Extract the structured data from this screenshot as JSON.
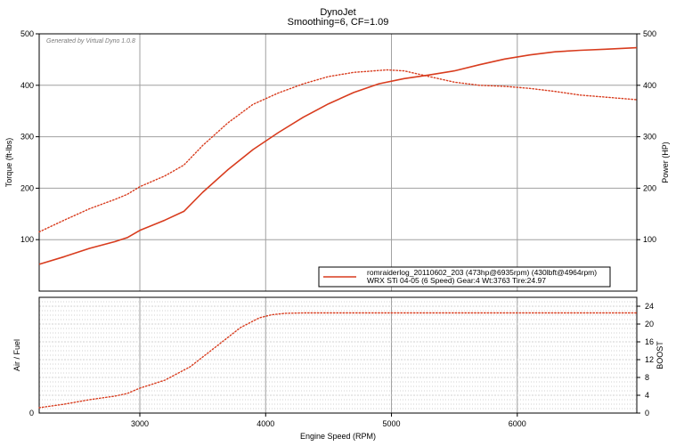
{
  "window": {
    "title": "DynoJet",
    "subtitle": "Smoothing=6, CF=1.09",
    "generated_by": "Generated by Virtual Dyno 1.0.8"
  },
  "colors": {
    "series": "#d83c1e",
    "grid_major": "#a0a0a0",
    "grid_minor": "#d2d2d2"
  },
  "chart_data": [
    {
      "type": "line",
      "title": "DynoJet",
      "subtitle": "Smoothing=6, CF=1.09",
      "xlabel": "Engine Speed (RPM)",
      "ylabel": "Torque (ft-lbs)",
      "y2label": "Power (HP)",
      "xlim": [
        2200,
        6950
      ],
      "ylim": [
        0,
        500
      ],
      "y2lim": [
        0,
        500
      ],
      "x_ticks": [
        "3000",
        "4000",
        "5000",
        "6000"
      ],
      "y_ticks": [
        "100",
        "200",
        "300",
        "400",
        "500"
      ],
      "y2_ticks": [
        "100",
        "200",
        "300",
        "400",
        "500"
      ],
      "grid": true,
      "legend": {
        "position": "bottom-right",
        "entries": [
          "romraiderlog_20110602_203 (473hp@6935rpm) (430lbft@4964rpm)",
          "WRX STi 04-05 (6 Speed) Gear:4 Wt:3763 Tire:24.97"
        ]
      },
      "series": [
        {
          "name": "Power",
          "style": "solid",
          "axis": "right",
          "x": [
            2200,
            2400,
            2600,
            2800,
            2900,
            3000,
            3200,
            3350,
            3500,
            3700,
            3900,
            4100,
            4300,
            4500,
            4700,
            4900,
            5100,
            5300,
            5500,
            5700,
            5900,
            6100,
            6300,
            6500,
            6700,
            6950
          ],
          "y": [
            52,
            67,
            83,
            96,
            104,
            118,
            138,
            155,
            192,
            236,
            275,
            308,
            338,
            364,
            386,
            403,
            413,
            420,
            428,
            440,
            451,
            459,
            465,
            468,
            470,
            473
          ]
        },
        {
          "name": "Torque",
          "style": "dotted",
          "axis": "left",
          "x": [
            2200,
            2400,
            2600,
            2800,
            2900,
            3000,
            3200,
            3350,
            3500,
            3700,
            3900,
            4100,
            4300,
            4500,
            4700,
            4964,
            5100,
            5300,
            5500,
            5700,
            5900,
            6100,
            6300,
            6500,
            6700,
            6950
          ],
          "y": [
            115,
            138,
            160,
            178,
            188,
            203,
            224,
            245,
            283,
            327,
            363,
            385,
            403,
            417,
            425,
            430,
            428,
            417,
            406,
            400,
            398,
            394,
            388,
            381,
            377,
            372
          ]
        }
      ]
    },
    {
      "type": "line",
      "xlabel": "Engine Speed (RPM)",
      "ylabel": "Air / Fuel",
      "y2label": "BOOST",
      "xlim": [
        2200,
        6950
      ],
      "y2lim": [
        0,
        26
      ],
      "x_ticks": [
        "3000",
        "4000",
        "5000",
        "6000"
      ],
      "y_ticks": [
        "0"
      ],
      "y2_ticks": [
        "0",
        "4",
        "8",
        "12",
        "16",
        "20",
        "24"
      ],
      "grid": true,
      "series": [
        {
          "name": "Boost",
          "style": "dotted",
          "axis": "right",
          "x": [
            2200,
            2400,
            2600,
            2800,
            2900,
            3000,
            3200,
            3400,
            3600,
            3800,
            3950,
            4050,
            4150,
            4300,
            4500,
            5000,
            5500,
            6000,
            6500,
            6950
          ],
          "y": [
            1.2,
            2.0,
            3.0,
            3.8,
            4.4,
            5.6,
            7.4,
            10.4,
            14.8,
            19.2,
            21.4,
            22.1,
            22.4,
            22.5,
            22.5,
            22.5,
            22.5,
            22.5,
            22.5,
            22.5
          ]
        }
      ]
    }
  ]
}
